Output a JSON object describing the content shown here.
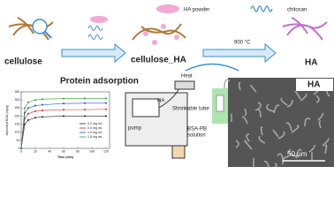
{
  "top": {
    "ha_powder": "HA powder",
    "chitosan": "chitosan",
    "cellulose": "cellulose",
    "cellulose_ha": "cellulose_HA",
    "temperature": "900 °C",
    "ha": "HA"
  },
  "bottom": {
    "protein_adsorption": "Protein adsorption",
    "heat": "Heat",
    "tube_ha": "HA",
    "shrinkable_tube": "Shrinkable tube",
    "pump": "pump",
    "solution": [
      "BSA-PB",
      "solution"
    ],
    "sem_label": "HA",
    "scale_bar": "50 μm"
  },
  "chart_data": {
    "type": "line",
    "x_label": "Time (min)",
    "y_label": "Absorbed BSA (mg/g)",
    "x": [
      0,
      5,
      10,
      20,
      30,
      60,
      90,
      120
    ],
    "xlim": [
      0,
      125
    ],
    "xticks": [
      0,
      20,
      40,
      60,
      80,
      100,
      120
    ],
    "ylim": [
      0,
      350
    ],
    "yticks": [
      0,
      50,
      100,
      150,
      200,
      250,
      300,
      350
    ],
    "series": [
      {
        "name": "0.2 mg mL",
        "color": "#222222",
        "values": [
          0,
          150,
          175,
          190,
          195,
          200,
          200,
          200
        ]
      },
      {
        "name": "0.5 mg mL",
        "color": "#d62728",
        "values": [
          0,
          185,
          215,
          230,
          235,
          240,
          240,
          242
        ]
      },
      {
        "name": "1.0 mg mL",
        "color": "#1f4fd6",
        "values": [
          0,
          220,
          250,
          265,
          270,
          278,
          280,
          280
        ]
      },
      {
        "name": "1.5 mg mL",
        "color": "#2ca02c",
        "values": [
          0,
          250,
          285,
          300,
          305,
          308,
          310,
          310
        ]
      }
    ]
  }
}
